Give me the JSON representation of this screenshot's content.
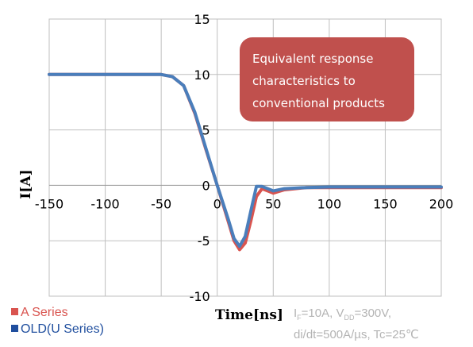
{
  "chart_data": {
    "type": "line",
    "title": "",
    "xlabel": "Time[ns]",
    "ylabel": "I[A]",
    "xlim": [
      -150,
      200
    ],
    "ylim": [
      -10,
      15
    ],
    "x_ticks": [
      -150,
      -100,
      -50,
      0,
      50,
      100,
      150,
      200
    ],
    "y_ticks": [
      -10,
      -5,
      0,
      5,
      10,
      15
    ],
    "x_tick_labels": [
      "-150",
      "-100",
      "-50",
      "0",
      "50",
      "100",
      "150",
      "200"
    ],
    "y_tick_labels": [
      "-10",
      "-5",
      "0",
      "5",
      "10",
      "15"
    ],
    "grid": true,
    "series": [
      {
        "name": "A Series",
        "color": "#d9544f",
        "x": [
          -150,
          -100,
          -50,
          -40,
          -30,
          -20,
          -10,
          0,
          10,
          15,
          20,
          25,
          30,
          35,
          40,
          50,
          60,
          80,
          100,
          150,
          200
        ],
        "y": [
          10,
          10,
          10,
          9.8,
          9,
          6.5,
          3.2,
          0,
          -3.3,
          -5,
          -5.8,
          -5.2,
          -3.2,
          -1,
          -0.3,
          -0.7,
          -0.4,
          -0.2,
          -0.2,
          -0.2,
          -0.2
        ]
      },
      {
        "name": "OLD(U Series)",
        "color": "#4a7ebb",
        "x": [
          -150,
          -100,
          -50,
          -40,
          -30,
          -20,
          -10,
          0,
          10,
          15,
          20,
          25,
          30,
          35,
          40,
          50,
          60,
          80,
          100,
          150,
          200
        ],
        "y": [
          10,
          10,
          10,
          9.8,
          9,
          6.6,
          3.3,
          0,
          -3.1,
          -4.8,
          -5.5,
          -4.6,
          -2.3,
          -0.1,
          -0.1,
          -0.5,
          -0.3,
          -0.2,
          -0.15,
          -0.15,
          -0.15
        ]
      }
    ],
    "annotations": [
      {
        "lines": [
          "Equivalent response",
          "characteristics to",
          "conventional products"
        ],
        "color": "#c0504d"
      }
    ]
  },
  "legend": [
    {
      "label": "A Series",
      "color": "#d9544f"
    },
    {
      "label": "OLD(U Series)",
      "color": "#1f4e9e"
    }
  ],
  "conditions": {
    "line1": {
      "i": "I",
      "i_sub": "F",
      "mid": "=10A, V",
      "v_sub": "DD",
      "end": "=300V,"
    },
    "line2": "di/dt=500A/µs, Tc=25℃"
  }
}
